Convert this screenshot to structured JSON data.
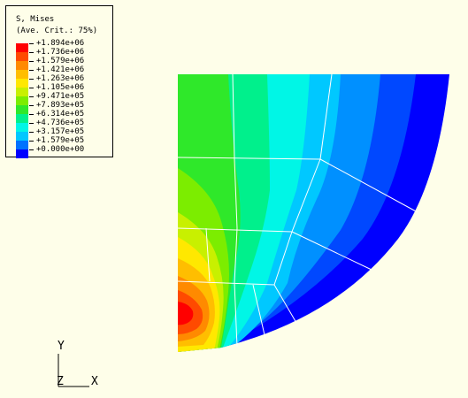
{
  "legend": {
    "title_line1": "S, Mises",
    "title_line2": "(Ave. Crit.: 75%)",
    "entries": [
      {
        "label": "+1.894e+06",
        "color": "#ff0000"
      },
      {
        "label": "+1.736e+06",
        "color": "#ff4a00"
      },
      {
        "label": "+1.579e+06",
        "color": "#ff8a00"
      },
      {
        "label": "+1.421e+06",
        "color": "#ffbe00"
      },
      {
        "label": "+1.263e+06",
        "color": "#ffe800"
      },
      {
        "label": "+1.105e+06",
        "color": "#c8f000"
      },
      {
        "label": "+9.471e+05",
        "color": "#7ced00"
      },
      {
        "label": "+7.893e+05",
        "color": "#2fe82a"
      },
      {
        "label": "+6.314e+05",
        "color": "#00f08c"
      },
      {
        "label": "+4.736e+05",
        "color": "#00f6e6"
      },
      {
        "label": "+3.157e+05",
        "color": "#00c8ff"
      },
      {
        "label": "+1.579e+05",
        "color": "#0072ff"
      },
      {
        "label": "+0.000e+00",
        "color": "#0000ff"
      }
    ]
  },
  "triad": {
    "y_label": "Y",
    "z_label": "Z",
    "x_label": "X"
  },
  "colors": {
    "background": "#fefee9",
    "mesh_lines": "#ffffff"
  }
}
